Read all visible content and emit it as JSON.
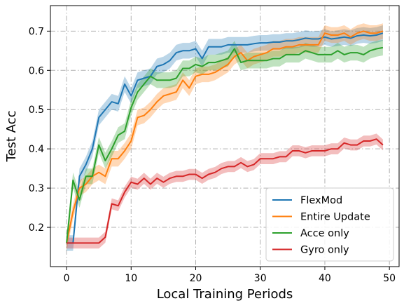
{
  "chart_data": {
    "type": "line",
    "title": "",
    "xlabel": "Local Training Periods",
    "ylabel": "Test Acc",
    "xlim": [
      -2.5,
      51.5
    ],
    "ylim": [
      0.1,
      0.765
    ],
    "xticks": [
      0,
      10,
      20,
      30,
      40,
      50
    ],
    "yticks": [
      0.2,
      0.3,
      0.4,
      0.5,
      0.6,
      0.7
    ],
    "xtick_labels": [
      "0",
      "10",
      "20",
      "30",
      "40",
      "50"
    ],
    "ytick_labels": [
      "0.2",
      "0.3",
      "0.4",
      "0.5",
      "0.6",
      "0.7"
    ],
    "grid": true,
    "grid_style": "dash-dot",
    "legend_position": "lower-right",
    "x": [
      0,
      1,
      2,
      3,
      4,
      5,
      6,
      7,
      8,
      9,
      10,
      11,
      12,
      13,
      14,
      15,
      16,
      17,
      18,
      19,
      20,
      21,
      22,
      23,
      24,
      25,
      26,
      27,
      28,
      29,
      30,
      31,
      32,
      33,
      34,
      35,
      36,
      37,
      38,
      39,
      40,
      41,
      42,
      43,
      44,
      45,
      46,
      47,
      48,
      49
    ],
    "series": [
      {
        "name": "FlexMod",
        "color": "#1f77b4",
        "band": 0.02,
        "values": [
          0.16,
          0.16,
          0.33,
          0.36,
          0.4,
          0.48,
          0.5,
          0.52,
          0.515,
          0.565,
          0.535,
          0.575,
          0.58,
          0.585,
          0.61,
          0.615,
          0.625,
          0.645,
          0.65,
          0.65,
          0.655,
          0.63,
          0.66,
          0.66,
          0.66,
          0.665,
          0.665,
          0.665,
          0.665,
          0.668,
          0.67,
          0.67,
          0.672,
          0.672,
          0.675,
          0.675,
          0.678,
          0.682,
          0.68,
          0.68,
          0.685,
          0.68,
          0.682,
          0.685,
          0.682,
          0.688,
          0.69,
          0.688,
          0.69,
          0.695
        ]
      },
      {
        "name": "Entire Update",
        "color": "#ff7f0e",
        "band": 0.02,
        "values": [
          0.16,
          0.24,
          0.3,
          0.31,
          0.33,
          0.34,
          0.33,
          0.375,
          0.375,
          0.395,
          0.42,
          0.48,
          0.485,
          0.5,
          0.52,
          0.535,
          0.54,
          0.545,
          0.575,
          0.555,
          0.585,
          0.59,
          0.59,
          0.595,
          0.605,
          0.615,
          0.635,
          0.645,
          0.625,
          0.635,
          0.64,
          0.645,
          0.655,
          0.655,
          0.66,
          0.66,
          0.665,
          0.665,
          0.665,
          0.665,
          0.695,
          0.69,
          0.69,
          0.695,
          0.685,
          0.695,
          0.7,
          0.695,
          0.695,
          0.7
        ]
      },
      {
        "name": "Acce only",
        "color": "#2ca02c",
        "band": 0.02,
        "values": [
          0.16,
          0.32,
          0.27,
          0.33,
          0.33,
          0.41,
          0.37,
          0.4,
          0.435,
          0.445,
          0.505,
          0.545,
          0.565,
          0.585,
          0.575,
          0.575,
          0.575,
          0.58,
          0.605,
          0.605,
          0.615,
          0.61,
          0.62,
          0.62,
          0.625,
          0.63,
          0.655,
          0.62,
          0.625,
          0.625,
          0.625,
          0.625,
          0.63,
          0.63,
          0.64,
          0.64,
          0.64,
          0.65,
          0.645,
          0.64,
          0.64,
          0.64,
          0.65,
          0.64,
          0.645,
          0.645,
          0.64,
          0.65,
          0.655,
          0.658
        ]
      },
      {
        "name": "Gyro only",
        "color": "#d62728",
        "band": 0.014,
        "values": [
          0.16,
          0.16,
          0.16,
          0.16,
          0.16,
          0.16,
          0.175,
          0.26,
          0.255,
          0.29,
          0.315,
          0.31,
          0.325,
          0.31,
          0.325,
          0.315,
          0.325,
          0.33,
          0.33,
          0.335,
          0.335,
          0.325,
          0.335,
          0.34,
          0.35,
          0.355,
          0.355,
          0.365,
          0.355,
          0.36,
          0.375,
          0.375,
          0.375,
          0.38,
          0.38,
          0.395,
          0.395,
          0.39,
          0.395,
          0.395,
          0.395,
          0.4,
          0.4,
          0.415,
          0.41,
          0.41,
          0.42,
          0.42,
          0.425,
          0.41
        ]
      }
    ]
  }
}
